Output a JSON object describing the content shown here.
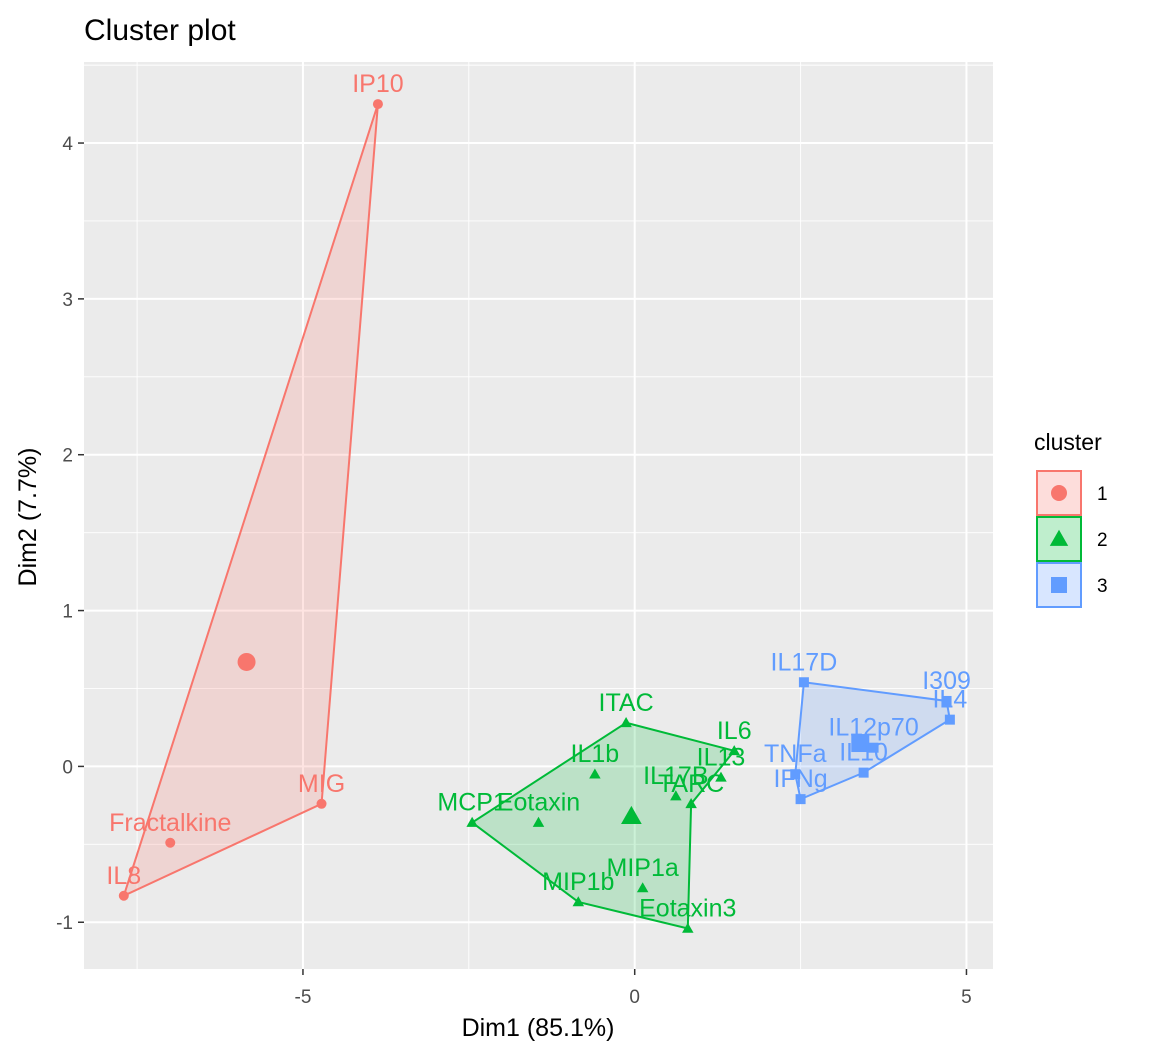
{
  "chart_data": {
    "type": "scatter",
    "title": "Cluster plot",
    "xlabel": "Dim1 (85.1%)",
    "ylabel": "Dim2 (7.7%)",
    "xlim": [
      -8.3,
      5.4
    ],
    "ylim": [
      -1.3,
      4.52
    ],
    "x_ticks": [
      -5,
      0,
      5
    ],
    "y_ticks": [
      -1,
      0,
      1,
      2,
      3,
      4
    ],
    "grid": true,
    "legend": {
      "title": "cluster",
      "position": "right",
      "entries": [
        "1",
        "2",
        "3"
      ]
    },
    "clusters": [
      {
        "name": "1",
        "color": "#F8766D",
        "shape": "circle",
        "centroid": [
          -5.85,
          0.67
        ],
        "hull": [
          "IP10",
          "MIG",
          "IL8"
        ],
        "points": [
          {
            "label": "IP10",
            "x": -3.87,
            "y": 4.25
          },
          {
            "label": "MIG",
            "x": -4.72,
            "y": -0.24
          },
          {
            "label": "Fractalkine",
            "x": -7.0,
            "y": -0.49
          },
          {
            "label": "IL8",
            "x": -7.7,
            "y": -0.83
          }
        ]
      },
      {
        "name": "2",
        "color": "#00BA38",
        "shape": "triangle",
        "centroid": [
          -0.05,
          -0.32
        ],
        "hull": [
          "ITAC",
          "IL6",
          "TARC",
          "Eotaxin3",
          "MIP1b",
          "MCP1"
        ],
        "points": [
          {
            "label": "ITAC",
            "x": -0.13,
            "y": 0.28
          },
          {
            "label": "IL1b",
            "x": -0.6,
            "y": -0.05
          },
          {
            "label": "IL6",
            "x": 1.5,
            "y": 0.1
          },
          {
            "label": "IL13",
            "x": 1.3,
            "y": -0.07
          },
          {
            "label": "IL17B",
            "x": 0.62,
            "y": -0.19
          },
          {
            "label": "TARC",
            "x": 0.85,
            "y": -0.24
          },
          {
            "label": "MCP1",
            "x": -2.45,
            "y": -0.36
          },
          {
            "label": "Eotaxin",
            "x": -1.45,
            "y": -0.36
          },
          {
            "label": "MIP1a",
            "x": 0.12,
            "y": -0.78
          },
          {
            "label": "MIP1b",
            "x": -0.85,
            "y": -0.87
          },
          {
            "label": "Eotaxin3",
            "x": 0.8,
            "y": -1.04
          }
        ]
      },
      {
        "name": "3",
        "color": "#619CFF",
        "shape": "square",
        "centroid": [
          3.4,
          0.15
        ],
        "hull": [
          "IL17D",
          "I309",
          "IL4",
          "IL10",
          "IFNg",
          "TNFa"
        ],
        "points": [
          {
            "label": "IL17D",
            "x": 2.55,
            "y": 0.54
          },
          {
            "label": "I309",
            "x": 4.7,
            "y": 0.42
          },
          {
            "label": "IL4",
            "x": 4.75,
            "y": 0.3
          },
          {
            "label": "IL12p70",
            "x": 3.6,
            "y": 0.12
          },
          {
            "label": "TNFa",
            "x": 2.42,
            "y": -0.05
          },
          {
            "label": "IL10",
            "x": 3.45,
            "y": -0.04
          },
          {
            "label": "IFNg",
            "x": 2.5,
            "y": -0.21
          }
        ]
      }
    ]
  }
}
